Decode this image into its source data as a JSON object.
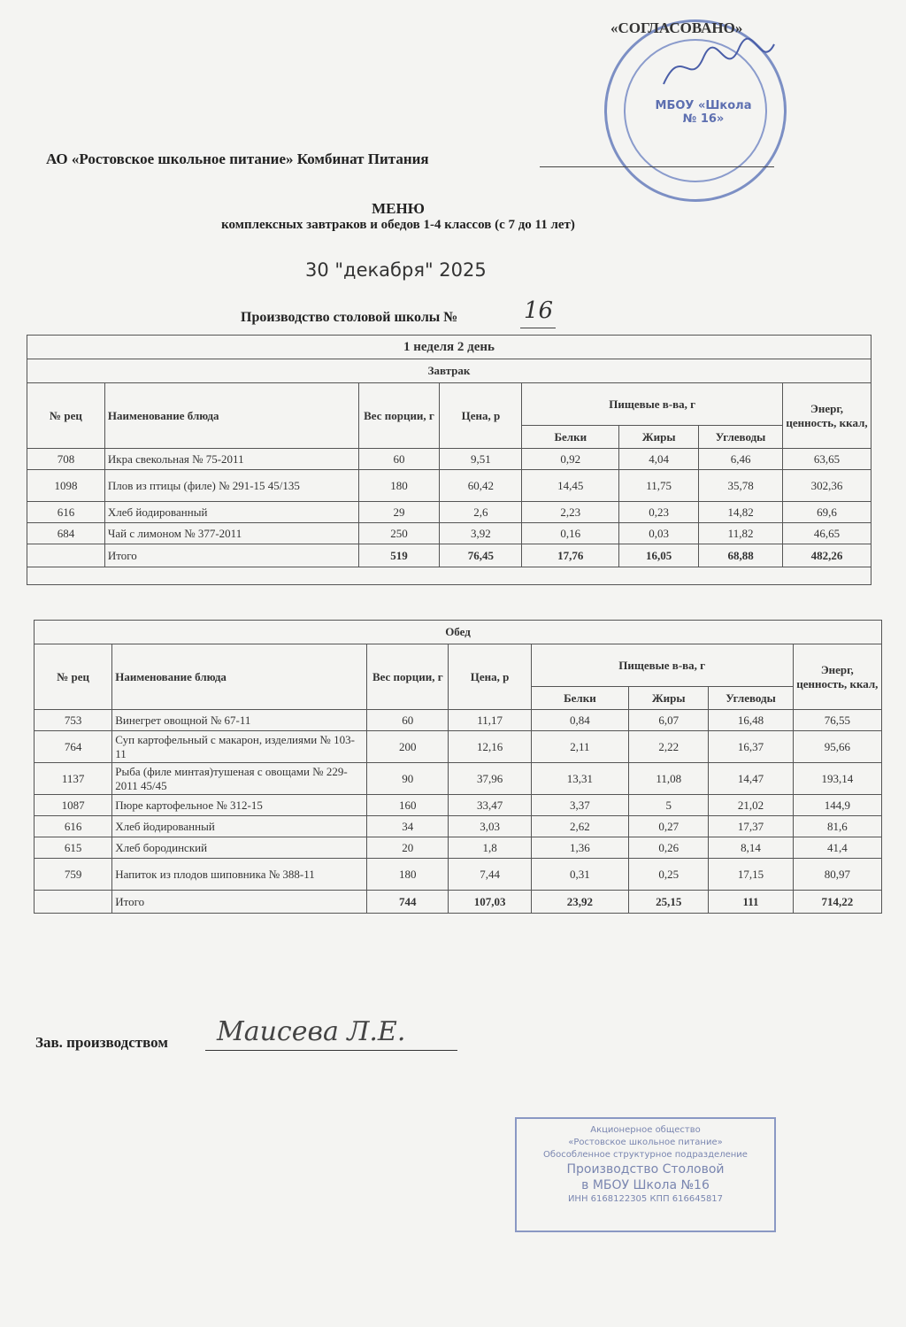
{
  "approval": {
    "label": "«СОГЛАСОВАНО»",
    "stamp_text": "МБОУ «Школа № 16»"
  },
  "header": {
    "organization": "АО «Ростовское школьное питание» Комбинат Питания",
    "title": "МЕНЮ",
    "subtitle": "комплексных завтраков и обедов 1-4 классов (с 7 до 11 лет)",
    "date": "30 \"декабря\" 2025",
    "production_label": "Производство столовой школы №",
    "school_number": "16"
  },
  "table": {
    "week_day": "1 неделя 2 день",
    "columns": {
      "rec": "№ рец",
      "name": "Наименование блюда",
      "weight": "Вес порции, г",
      "price": "Цена, р",
      "nutrients": "Пищевые в-ва, г",
      "protein": "Белки",
      "fat": "Жиры",
      "carbs": "Углеводы",
      "energy": "Энерг, ценность, ккал,"
    },
    "sections": [
      {
        "title": "Завтрак",
        "rows": [
          [
            "708",
            "Икра свекольная № 75-2011",
            "60",
            "9,51",
            "0,92",
            "4,04",
            "6,46",
            "63,65"
          ],
          [
            "1098",
            "Плов из птицы (филе)  № 291-15 45/135",
            "180",
            "60,42",
            "14,45",
            "11,75",
            "35,78",
            "302,36"
          ],
          [
            "616",
            "Хлеб йодированный",
            "29",
            "2,6",
            "2,23",
            "0,23",
            "14,82",
            "69,6"
          ],
          [
            "684",
            "Чай с лимоном № 377-2011",
            "250",
            "3,92",
            "0,16",
            "0,03",
            "11,82",
            "46,65"
          ]
        ],
        "total": [
          "",
          "Итого",
          "519",
          "76,45",
          "17,76",
          "16,05",
          "68,88",
          "482,26"
        ]
      },
      {
        "title": "Обед",
        "rows": [
          [
            "753",
            "Винегрет овощной № 67-11",
            "60",
            "11,17",
            "0,84",
            "6,07",
            "16,48",
            "76,55"
          ],
          [
            "764",
            "Суп картофельный с макарон, изделиями № 103-11",
            "200",
            "12,16",
            "2,11",
            "2,22",
            "16,37",
            "95,66"
          ],
          [
            "1137",
            "Рыба (филе минтая)тушеная с овощами № 229-2011 45/45",
            "90",
            "37,96",
            "13,31",
            "11,08",
            "14,47",
            "193,14"
          ],
          [
            "1087",
            "Пюре картофельное № 312-15",
            "160",
            "33,47",
            "3,37",
            "5",
            "21,02",
            "144,9"
          ],
          [
            "616",
            "Хлеб йодированный",
            "34",
            "3,03",
            "2,62",
            "0,27",
            "17,37",
            "81,6"
          ],
          [
            "615",
            "Хлеб бородинский",
            "20",
            "1,8",
            "1,36",
            "0,26",
            "8,14",
            "41,4"
          ],
          [
            "759",
            "Напиток из плодов шиповника № 388-11",
            "180",
            "7,44",
            "0,31",
            "0,25",
            "17,15",
            "80,97"
          ]
        ],
        "total": [
          "",
          "Итого",
          "744",
          "107,03",
          "23,92",
          "25,15",
          "111",
          "714,22"
        ]
      }
    ]
  },
  "footer": {
    "manager_label": "Зав. производством",
    "signature": "Маисева Л.Е."
  },
  "production_stamp": {
    "line1": "Акционерное общество",
    "line2": "«Ростовское школьное питание»",
    "line3": "Обособленное структурное подразделение",
    "line4": "Производство Столовой",
    "line5": "в МБОУ Школа №16",
    "line6": "ИНН 6168122305  КПП 616645817"
  },
  "colors": {
    "stamp_blue": "#7c8fc4",
    "paper": "#f4f4f2"
  }
}
